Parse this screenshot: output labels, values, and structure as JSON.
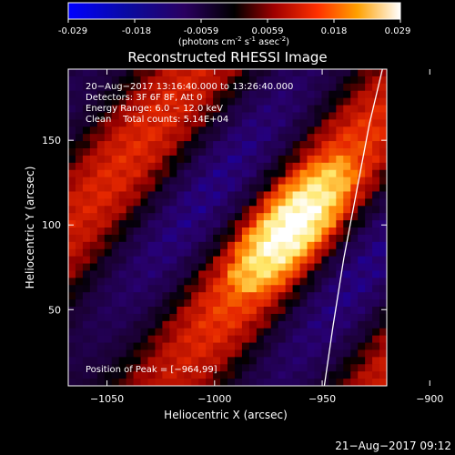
{
  "colorbar": {
    "ticks": [
      "-0.029",
      "-0.018",
      "-0.0059",
      "0.0059",
      "0.018",
      "0.029"
    ],
    "range": [
      -0.029,
      0.029
    ],
    "units_prefix": "(photons cm",
    "units_exp1": "-2",
    "units_mid": " s",
    "units_exp2": "-1",
    "units_mid2": " asec",
    "units_exp3": "-2",
    "units_suffix": ")"
  },
  "chart_data": {
    "type": "heatmap",
    "title": "Reconstructed RHESSI Image",
    "xlabel": "Heliocentric X (arcsec)",
    "ylabel": "Heliocentric Y (arcsec)",
    "xlim": [
      -1068,
      -920
    ],
    "ylim": [
      5,
      192
    ],
    "xticks": [
      -1050,
      -1000,
      -950,
      -900
    ],
    "yticks": [
      50,
      100,
      150
    ],
    "xtick_labels": [
      "−1050",
      "−1000",
      "−950",
      "−900"
    ],
    "ytick_labels": [
      "50",
      "100",
      "150"
    ],
    "colormap": [
      "#0000ff",
      "#1e0040",
      "#000000",
      "#aa0000",
      "#ff6a00",
      "#ffff9a",
      "#ffffff"
    ],
    "annotations": [
      "20−Aug−2017 13:16:40.000 to 13:26:40.000",
      "Detectors: 3F 6F 8F, Att 0",
      "Energy Range: 6.0 − 12.0 keV",
      "Clean    Total counts: 5.14E+04"
    ],
    "peak_label": "Position of Peak = [−964,99]",
    "peak": [
      -964,
      99
    ],
    "limb_line": [
      [
        -949,
        5
      ],
      [
        -945,
        40
      ],
      [
        -940,
        80
      ],
      [
        -934,
        120
      ],
      [
        -928,
        160
      ],
      [
        -922,
        192
      ]
    ]
  },
  "footer": {
    "timestamp": "21−Aug−2017 09:12"
  }
}
